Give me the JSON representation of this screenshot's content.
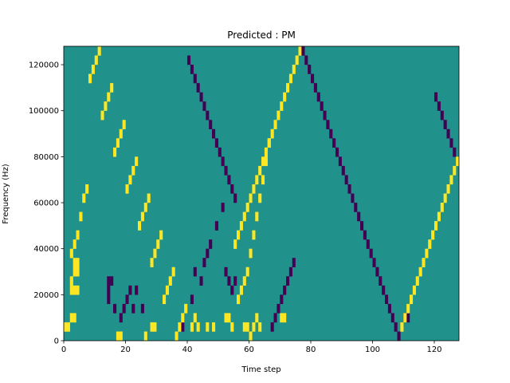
{
  "chart_data": {
    "type": "heatmap",
    "title": "Predicted : PM",
    "xlabel": "Time step",
    "ylabel": "Frequency (Hz)",
    "xlim": [
      0,
      128
    ],
    "ylim": [
      0,
      128000
    ],
    "x_ticks": [
      0,
      20,
      40,
      60,
      80,
      100,
      120
    ],
    "y_ticks": [
      0,
      20000,
      40000,
      60000,
      80000,
      100000,
      120000
    ],
    "x_tick_labels": [
      "0",
      "20",
      "40",
      "60",
      "80",
      "100",
      "120"
    ],
    "y_tick_labels": [
      "0",
      "20000",
      "40000",
      "60000",
      "80000",
      "100000",
      "120000"
    ],
    "grid": false,
    "legend": "none",
    "time_steps": 128,
    "frequency_bins": 32,
    "background_value": 0,
    "colors": {
      "low": "#440154",
      "mid": "#21918c",
      "high": "#fde725"
    },
    "cells": [
      [
        0,
        1,
        1
      ],
      [
        1,
        1,
        1
      ],
      [
        2,
        2,
        1
      ],
      [
        3,
        2,
        1
      ],
      [
        17,
        0,
        1
      ],
      [
        18,
        0,
        1
      ],
      [
        26,
        0,
        1
      ],
      [
        28,
        1,
        1
      ],
      [
        29,
        1,
        1
      ],
      [
        41,
        1,
        1
      ],
      [
        42,
        2,
        1
      ],
      [
        43,
        1,
        1
      ],
      [
        46,
        1,
        1
      ],
      [
        48,
        1,
        1
      ],
      [
        52,
        2,
        1
      ],
      [
        53,
        2,
        1
      ],
      [
        54,
        1,
        1
      ],
      [
        58,
        1,
        1
      ],
      [
        59,
        1,
        1
      ],
      [
        60,
        0,
        1
      ],
      [
        61,
        1,
        1
      ],
      [
        62,
        2,
        1
      ],
      [
        63,
        1,
        1
      ],
      [
        70,
        2,
        1
      ],
      [
        71,
        2,
        1
      ],
      [
        110,
        2,
        -1
      ],
      [
        111,
        2,
        -1
      ],
      [
        2,
        5,
        1
      ],
      [
        3,
        5,
        1
      ],
      [
        4,
        5,
        1
      ],
      [
        2,
        6,
        1
      ],
      [
        3,
        7,
        1
      ],
      [
        4,
        7,
        1
      ],
      [
        3,
        8,
        1
      ],
      [
        4,
        8,
        1
      ],
      [
        2,
        9,
        1
      ],
      [
        3,
        10,
        1
      ],
      [
        4,
        11,
        1
      ],
      [
        5,
        13,
        1
      ],
      [
        6,
        15,
        1
      ],
      [
        7,
        16,
        1
      ],
      [
        14,
        4,
        -1
      ],
      [
        14,
        5,
        -1
      ],
      [
        14,
        6,
        -1
      ],
      [
        15,
        6,
        -1
      ],
      [
        16,
        3,
        -1
      ],
      [
        18,
        2,
        -1
      ],
      [
        19,
        3,
        -1
      ],
      [
        20,
        4,
        -1
      ],
      [
        21,
        5,
        -1
      ],
      [
        22,
        3,
        -1
      ],
      [
        23,
        5,
        -1
      ],
      [
        25,
        3,
        -1
      ],
      [
        38,
        1,
        -1
      ],
      [
        41,
        4,
        -1
      ],
      [
        42,
        7,
        -1
      ],
      [
        44,
        6,
        -1
      ],
      [
        45,
        8,
        -1
      ],
      [
        46,
        9,
        -1
      ],
      [
        47,
        10,
        -1
      ],
      [
        49,
        12,
        -1
      ],
      [
        51,
        14,
        -1
      ],
      [
        52,
        7,
        -1
      ],
      [
        53,
        6,
        -1
      ],
      [
        54,
        5,
        -1
      ],
      [
        55,
        6,
        -1
      ],
      [
        56,
        4,
        1
      ],
      [
        57,
        5,
        1
      ],
      [
        58,
        6,
        1
      ],
      [
        59,
        7,
        1
      ],
      [
        60,
        9,
        1
      ],
      [
        61,
        11,
        1
      ],
      [
        62,
        13,
        1
      ],
      [
        63,
        15,
        1
      ],
      [
        64,
        17,
        1
      ],
      [
        65,
        19,
        1
      ],
      [
        66,
        21,
        1
      ],
      [
        67,
        1,
        -1
      ],
      [
        68,
        2,
        -1
      ],
      [
        69,
        3,
        -1
      ],
      [
        70,
        4,
        -1
      ],
      [
        71,
        5,
        -1
      ],
      [
        72,
        6,
        -1
      ],
      [
        73,
        7,
        -1
      ],
      [
        74,
        8,
        -1
      ],
      [
        55,
        10,
        1
      ],
      [
        56,
        11,
        1
      ],
      [
        57,
        12,
        1
      ],
      [
        58,
        13,
        1
      ],
      [
        59,
        14,
        1
      ],
      [
        60,
        15,
        1
      ],
      [
        61,
        16,
        1
      ],
      [
        62,
        17,
        1
      ],
      [
        63,
        18,
        1
      ],
      [
        64,
        19,
        1
      ],
      [
        65,
        20,
        1
      ],
      [
        66,
        21,
        1
      ],
      [
        67,
        22,
        1
      ],
      [
        68,
        23,
        1
      ],
      [
        69,
        24,
        1
      ],
      [
        70,
        25,
        1
      ],
      [
        71,
        26,
        1
      ],
      [
        72,
        27,
        1
      ],
      [
        73,
        28,
        1
      ],
      [
        74,
        29,
        1
      ],
      [
        75,
        30,
        1
      ],
      [
        76,
        31,
        1
      ],
      [
        77,
        31,
        -1
      ],
      [
        78,
        30,
        -1
      ],
      [
        79,
        29,
        -1
      ],
      [
        80,
        28,
        -1
      ],
      [
        81,
        27,
        -1
      ],
      [
        82,
        26,
        -1
      ],
      [
        83,
        25,
        -1
      ],
      [
        84,
        24,
        -1
      ],
      [
        85,
        23,
        -1
      ],
      [
        86,
        22,
        -1
      ],
      [
        87,
        21,
        -1
      ],
      [
        88,
        20,
        -1
      ],
      [
        89,
        19,
        -1
      ],
      [
        90,
        18,
        -1
      ],
      [
        91,
        17,
        -1
      ],
      [
        92,
        16,
        -1
      ],
      [
        93,
        15,
        -1
      ],
      [
        94,
        14,
        -1
      ],
      [
        95,
        13,
        -1
      ],
      [
        96,
        12,
        -1
      ],
      [
        97,
        11,
        -1
      ],
      [
        98,
        10,
        -1
      ],
      [
        99,
        9,
        -1
      ],
      [
        100,
        8,
        -1
      ],
      [
        101,
        7,
        -1
      ],
      [
        102,
        6,
        -1
      ],
      [
        103,
        5,
        -1
      ],
      [
        104,
        4,
        -1
      ],
      [
        105,
        3,
        -1
      ],
      [
        106,
        2,
        -1
      ],
      [
        107,
        1,
        -1
      ],
      [
        108,
        0,
        -1
      ],
      [
        109,
        1,
        1
      ],
      [
        110,
        2,
        1
      ],
      [
        111,
        3,
        1
      ],
      [
        112,
        4,
        1
      ],
      [
        113,
        5,
        1
      ],
      [
        114,
        6,
        1
      ],
      [
        115,
        7,
        1
      ],
      [
        116,
        8,
        1
      ],
      [
        117,
        9,
        1
      ],
      [
        118,
        10,
        1
      ],
      [
        119,
        11,
        1
      ],
      [
        120,
        12,
        1
      ],
      [
        121,
        13,
        1
      ],
      [
        122,
        14,
        1
      ],
      [
        123,
        15,
        1
      ],
      [
        124,
        16,
        1
      ],
      [
        125,
        17,
        1
      ],
      [
        126,
        18,
        1
      ],
      [
        127,
        19,
        1
      ],
      [
        126,
        20,
        -1
      ],
      [
        125,
        21,
        -1
      ],
      [
        124,
        22,
        -1
      ],
      [
        123,
        23,
        -1
      ],
      [
        122,
        24,
        -1
      ],
      [
        121,
        25,
        -1
      ],
      [
        120,
        26,
        -1
      ],
      [
        8,
        28,
        1
      ],
      [
        9,
        29,
        1
      ],
      [
        10,
        30,
        1
      ],
      [
        11,
        31,
        1
      ],
      [
        12,
        24,
        1
      ],
      [
        13,
        25,
        1
      ],
      [
        14,
        26,
        1
      ],
      [
        15,
        27,
        1
      ],
      [
        16,
        20,
        1
      ],
      [
        17,
        21,
        1
      ],
      [
        18,
        22,
        1
      ],
      [
        19,
        23,
        1
      ],
      [
        20,
        16,
        1
      ],
      [
        21,
        17,
        1
      ],
      [
        22,
        18,
        1
      ],
      [
        23,
        19,
        1
      ],
      [
        24,
        12,
        1
      ],
      [
        25,
        13,
        1
      ],
      [
        26,
        14,
        1
      ],
      [
        27,
        15,
        1
      ],
      [
        28,
        8,
        1
      ],
      [
        29,
        9,
        1
      ],
      [
        30,
        10,
        1
      ],
      [
        31,
        11,
        1
      ],
      [
        32,
        4,
        1
      ],
      [
        33,
        5,
        1
      ],
      [
        34,
        6,
        1
      ],
      [
        35,
        7,
        1
      ],
      [
        36,
        0,
        1
      ],
      [
        37,
        1,
        1
      ],
      [
        38,
        2,
        1
      ],
      [
        39,
        3,
        1
      ],
      [
        40,
        30,
        -1
      ],
      [
        41,
        29,
        -1
      ],
      [
        42,
        28,
        -1
      ],
      [
        43,
        27,
        -1
      ],
      [
        44,
        26,
        -1
      ],
      [
        45,
        25,
        -1
      ],
      [
        46,
        24,
        -1
      ],
      [
        47,
        23,
        -1
      ],
      [
        48,
        22,
        -1
      ],
      [
        49,
        21,
        -1
      ],
      [
        50,
        20,
        -1
      ],
      [
        51,
        19,
        -1
      ],
      [
        52,
        18,
        -1
      ],
      [
        53,
        17,
        -1
      ],
      [
        54,
        16,
        -1
      ],
      [
        55,
        15,
        -1
      ]
    ]
  }
}
